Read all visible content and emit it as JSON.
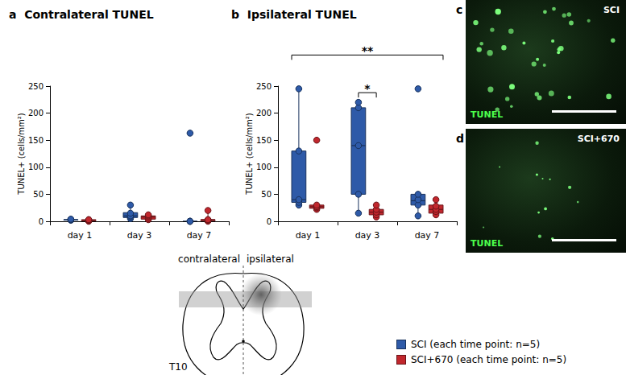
{
  "chart_data": [
    {
      "type": "boxplot",
      "panel": "a",
      "title": "Contralateral TUNEL",
      "y_label": "TUNEL+ (cells/mm²)",
      "categories": [
        "day 1",
        "day 3",
        "day 7"
      ],
      "ylim": [
        0,
        250
      ],
      "yticks": [
        0,
        50,
        100,
        150,
        200,
        250
      ],
      "grid": false,
      "series": [
        {
          "name": "SCI (each time point: n=5)",
          "color": "#2e5aa8",
          "values": [
            [
              2,
              3,
              3,
              3,
              4
            ],
            [
              5,
              8,
              10,
              15,
              30
            ],
            [
              0,
              0,
              0,
              0,
              163
            ]
          ],
          "box": [
            [
              2,
              3,
              3,
              3,
              4
            ],
            [
              5,
              7,
              10,
              16,
              30
            ],
            [
              0,
              0,
              0,
              0,
              0
            ]
          ]
        },
        {
          "name": "SCI+670 (each time point: n=5)",
          "color": "#c1272d",
          "values": [
            [
              0,
              1,
              2,
              3,
              3
            ],
            [
              3,
              5,
              8,
              10,
              12
            ],
            [
              0,
              2,
              3,
              3,
              20
            ]
          ],
          "box": [
            [
              0,
              1,
              2,
              3,
              3
            ],
            [
              3,
              4,
              8,
              10,
              12
            ],
            [
              0,
              1,
              3,
              3,
              20
            ]
          ]
        }
      ],
      "annotations": []
    },
    {
      "type": "boxplot",
      "panel": "b",
      "title": "Ipsilateral TUNEL",
      "y_label": "TUNEL+ (cells/mm²)",
      "categories": [
        "day 1",
        "day 3",
        "day 7"
      ],
      "ylim": [
        0,
        250
      ],
      "yticks": [
        0,
        50,
        100,
        150,
        200,
        250
      ],
      "grid": false,
      "series": [
        {
          "name": "SCI (each time point: n=5)",
          "color": "#2e5aa8",
          "values": [
            [
              30,
              35,
              40,
              130,
              245
            ],
            [
              15,
              50,
              140,
              210,
              220
            ],
            [
              10,
              30,
              40,
              50,
              245
            ]
          ],
          "box": [
            [
              30,
              35,
              40,
              130,
              245
            ],
            [
              15,
              50,
              140,
              210,
              220
            ],
            [
              10,
              30,
              38,
              50,
              50
            ]
          ]
        },
        {
          "name": "SCI+670 (each time point: n=5)",
          "color": "#c1272d",
          "values": [
            [
              22,
              25,
              27,
              30,
              150
            ],
            [
              8,
              12,
              17,
              22,
              30
            ],
            [
              12,
              18,
              22,
              28,
              40
            ]
          ],
          "box": [
            [
              22,
              24,
              27,
              30,
              30
            ],
            [
              8,
              12,
              17,
              22,
              30
            ],
            [
              12,
              15,
              22,
              30,
              40
            ]
          ]
        }
      ],
      "annotations": [
        {
          "text": "*",
          "from": {
            "category": "day 3",
            "series": "SCI (each time point: n=5)"
          },
          "to": {
            "category": "day 3",
            "series": "SCI+670 (each time point: n=5)"
          }
        },
        {
          "text": "**",
          "from": {
            "category": "day 1",
            "series": "SCI (each time point: n=5)"
          },
          "to": {
            "category": "day 7",
            "series": "SCI+670 (each time point: n=5)"
          }
        }
      ]
    }
  ],
  "images": [
    {
      "panel": "c",
      "label": "SCI",
      "stain": "TUNEL"
    },
    {
      "panel": "d",
      "label": "SCI+670",
      "stain": "TUNEL"
    }
  ],
  "diagram": {
    "left": "contralateral",
    "right": "ipsilateral",
    "level": "T10"
  }
}
